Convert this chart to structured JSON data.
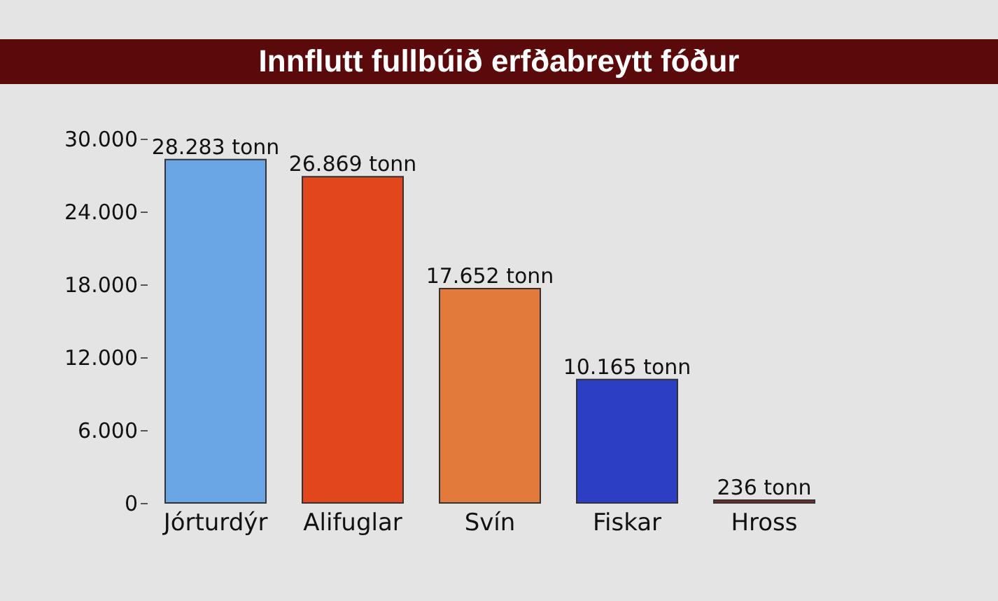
{
  "chart_data": {
    "type": "bar",
    "title": "Innflutt fullbúið erfðabreytt fóður",
    "categories": [
      "Jórturdýr",
      "Alifuglar",
      "Svín",
      "Fiskar",
      "Hross"
    ],
    "values": [
      28283,
      26869,
      17652,
      10165,
      236
    ],
    "colors": [
      "#6aa6e6",
      "#e2461c",
      "#e27a3c",
      "#2c3ec4",
      "#7a2a1e"
    ],
    "value_labels": [
      "28.283 tonn",
      "26.869 tonn",
      "17.652 tonn",
      "10.165 tonn",
      "236 tonn"
    ],
    "ylim": [
      0,
      30000
    ],
    "yticks": [
      {
        "value": 0,
        "label": "0"
      },
      {
        "value": 6000,
        "label": "6.000"
      },
      {
        "value": 12000,
        "label": "12.000"
      },
      {
        "value": 18000,
        "label": "18.000"
      },
      {
        "value": 24000,
        "label": "24.000"
      },
      {
        "value": 30000,
        "label": "30.000"
      }
    ],
    "grid": false
  }
}
